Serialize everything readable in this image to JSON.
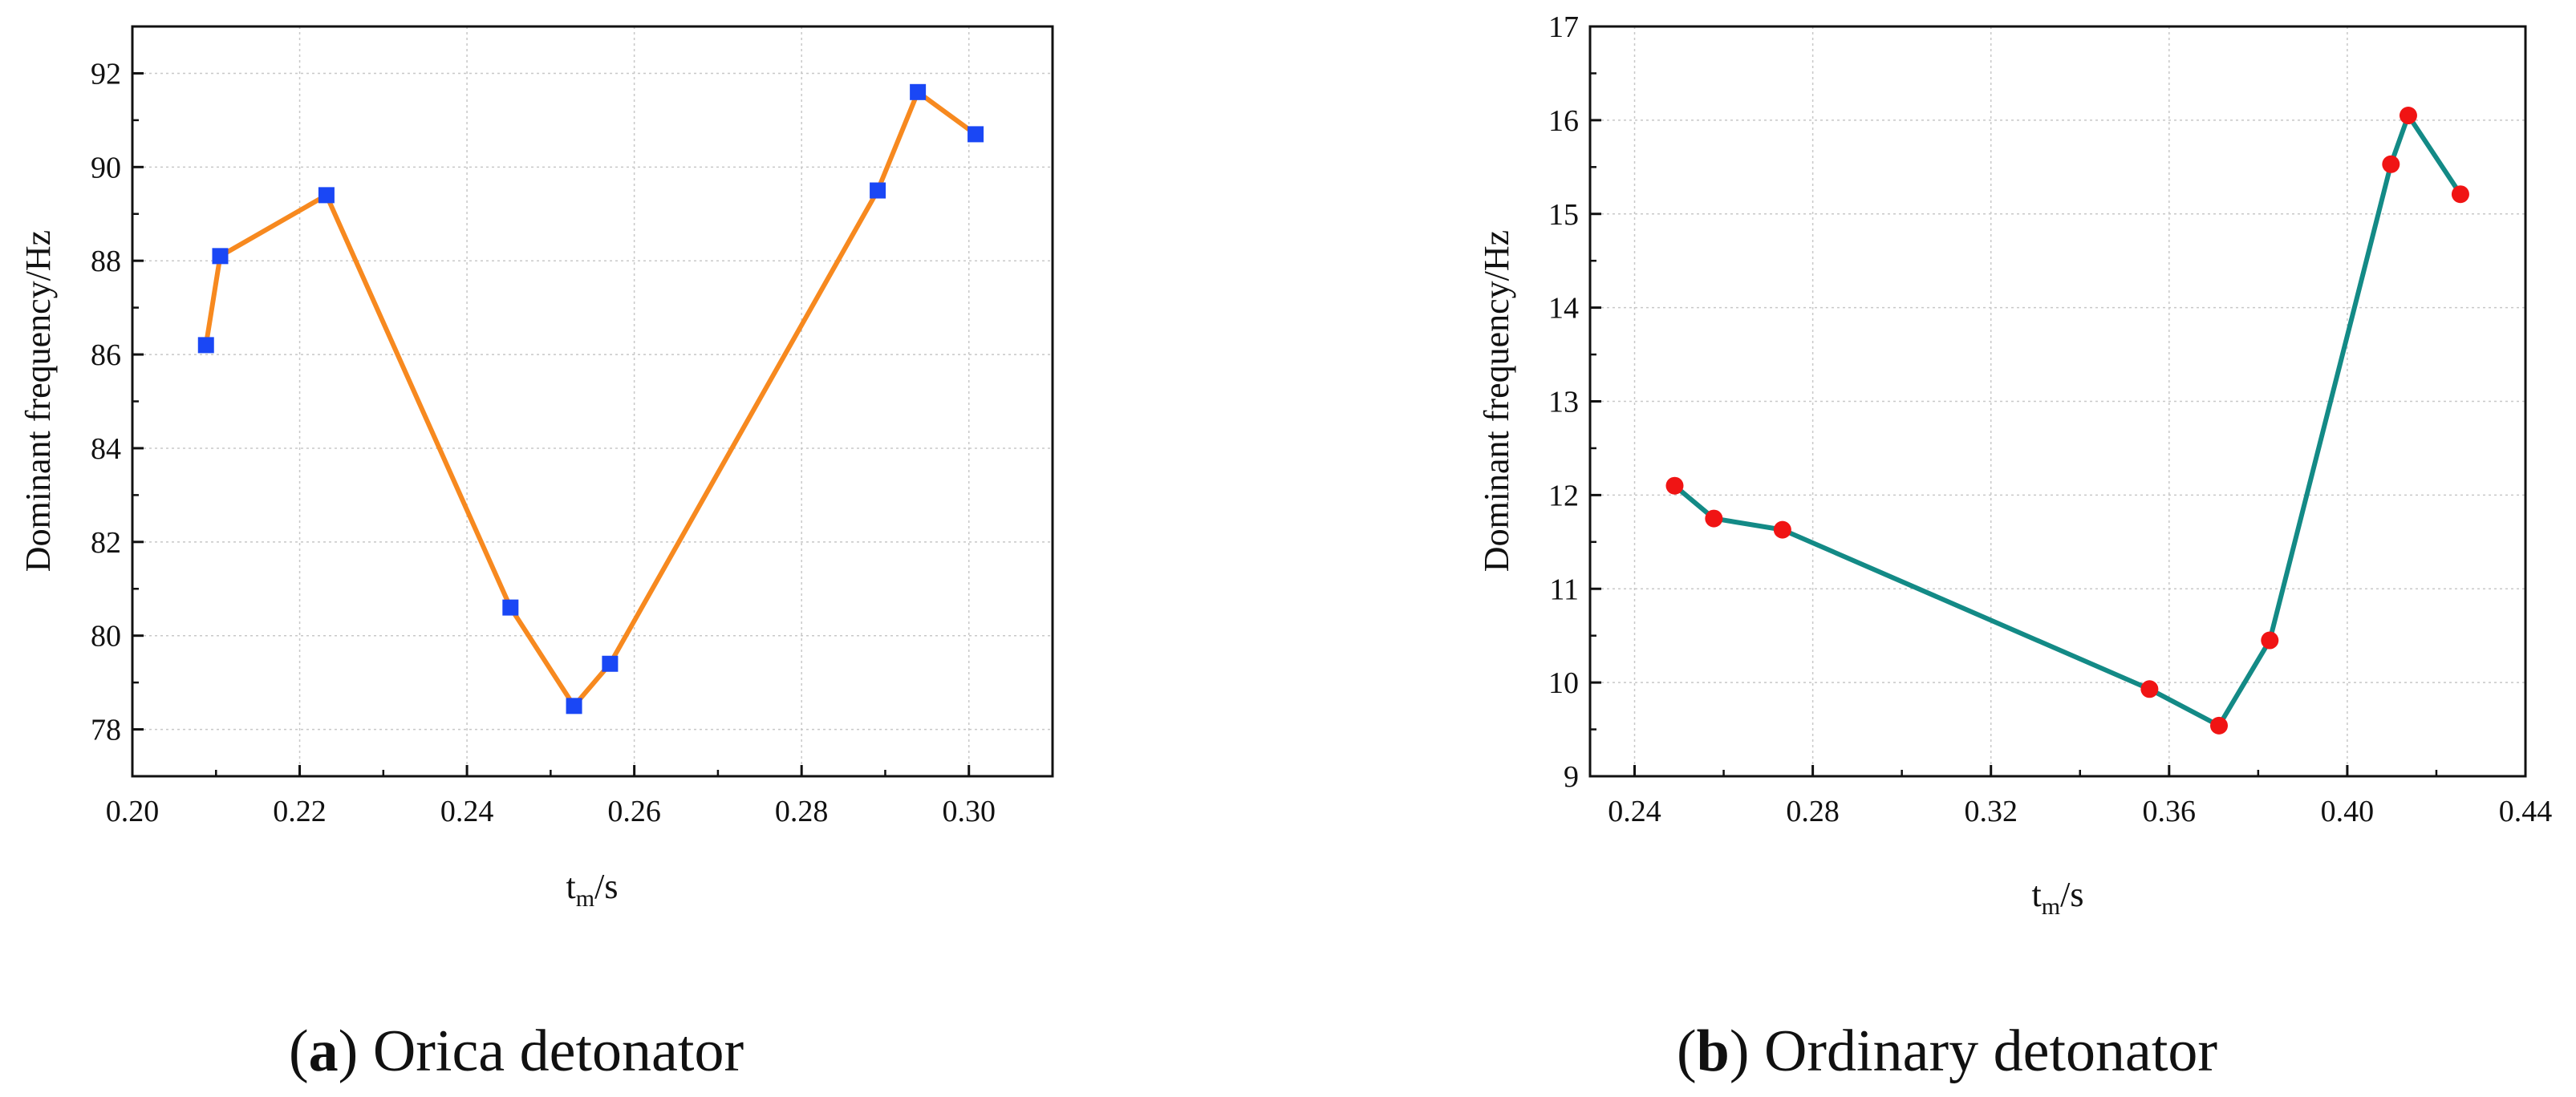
{
  "chart_data": [
    {
      "type": "line",
      "caption": {
        "open": "(",
        "letter": "a",
        "close": ")",
        "text": " Orica detonator"
      },
      "xlabel": {
        "main": "t",
        "sub": "m",
        "rest": "/s"
      },
      "ylabel": "Dominant frequency/Hz",
      "xlim": [
        0.2,
        0.31
      ],
      "ylim": [
        77,
        93
      ],
      "xticks": [
        0.2,
        0.22,
        0.24,
        0.26,
        0.28,
        0.3
      ],
      "xtick_labels": [
        "0.20",
        "0.22",
        "0.24",
        "0.26",
        "0.28",
        "0.30"
      ],
      "yticks": [
        78,
        80,
        82,
        84,
        86,
        88,
        90,
        92
      ],
      "ytick_labels": [
        "78",
        "80",
        "82",
        "84",
        "86",
        "88",
        "90",
        "92"
      ],
      "grid": true,
      "series": [
        {
          "name": "Orica detonator",
          "marker": "square",
          "line_color": "#F7891F",
          "marker_color": "#1A47F5",
          "x": [
            0.2088,
            0.2105,
            0.2232,
            0.2452,
            0.2528,
            0.2571,
            0.2891,
            0.2939,
            0.3008
          ],
          "y": [
            86.2,
            88.1,
            89.4,
            80.6,
            78.5,
            79.4,
            89.5,
            91.6,
            90.7
          ]
        }
      ]
    },
    {
      "type": "line",
      "caption": {
        "open": "(",
        "letter": "b",
        "close": ")",
        "text": " Ordinary detonator"
      },
      "xlabel": {
        "main": "t",
        "sub": "m",
        "rest": "/s"
      },
      "ylabel": "Dominant frequency/Hz",
      "xlim": [
        0.23,
        0.44
      ],
      "ylim": [
        9,
        17
      ],
      "xticks": [
        0.24,
        0.28,
        0.32,
        0.36,
        0.4,
        0.44
      ],
      "xtick_labels": [
        "0.24",
        "0.28",
        "0.32",
        "0.36",
        "0.40",
        "0.44"
      ],
      "yticks": [
        9,
        10,
        11,
        12,
        13,
        14,
        15,
        16,
        17
      ],
      "ytick_labels": [
        "9",
        "10",
        "11",
        "12",
        "13",
        "14",
        "15",
        "16",
        "17"
      ],
      "grid": true,
      "series": [
        {
          "name": "Ordinary detonator",
          "marker": "circle",
          "line_color": "#138A86",
          "marker_color": "#F01414",
          "x": [
            0.249,
            0.2578,
            0.2732,
            0.3556,
            0.3712,
            0.3826,
            0.4098,
            0.4137,
            0.4254
          ],
          "y": [
            12.1,
            11.75,
            11.63,
            9.93,
            9.54,
            10.45,
            15.53,
            16.05,
            15.21
          ]
        }
      ]
    }
  ]
}
